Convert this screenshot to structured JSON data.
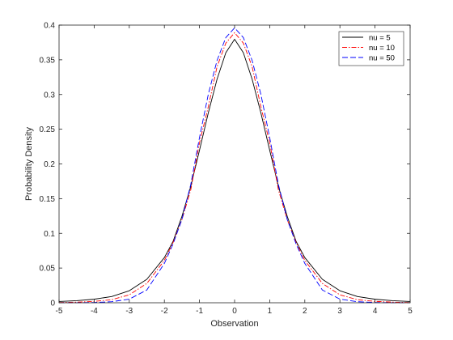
{
  "chart_data": {
    "type": "line",
    "title": "",
    "xlabel": "Observation",
    "ylabel": "Probability Density",
    "xlim": [
      -5,
      5
    ],
    "ylim": [
      0,
      0.4
    ],
    "xticks": [
      -5,
      -4,
      -3,
      -2,
      -1,
      0,
      1,
      2,
      3,
      4,
      5
    ],
    "yticks": [
      0,
      0.05,
      0.1,
      0.15,
      0.2,
      0.25,
      0.3,
      0.35,
      0.4
    ],
    "xtick_labels": [
      "-5",
      "-4",
      "-3",
      "-2",
      "-1",
      "0",
      "1",
      "2",
      "3",
      "4",
      "5"
    ],
    "ytick_labels": [
      "0",
      "0.05",
      "0.1",
      "0.15",
      "0.2",
      "0.25",
      "0.3",
      "0.35",
      "0.4"
    ],
    "grid": false,
    "legend_position": "top-right",
    "x": [
      -5,
      -4.5,
      -4,
      -3.5,
      -3,
      -2.5,
      -2,
      -1.75,
      -1.5,
      -1.25,
      -1,
      -0.75,
      -0.5,
      -0.25,
      0,
      0.25,
      0.5,
      0.75,
      1,
      1.25,
      1.5,
      1.75,
      2,
      2.5,
      3,
      3.5,
      4,
      4.5,
      5
    ],
    "series": [
      {
        "name": "nu = 5",
        "color": "#000000",
        "dash": "solid",
        "values": [
          0.0018,
          0.003,
          0.0051,
          0.009,
          0.0173,
          0.0338,
          0.0651,
          0.0887,
          0.1245,
          0.1674,
          0.2197,
          0.2733,
          0.322,
          0.3602,
          0.3796,
          0.3602,
          0.322,
          0.2733,
          0.2197,
          0.1674,
          0.1245,
          0.0887,
          0.0651,
          0.0338,
          0.0173,
          0.009,
          0.0051,
          0.003,
          0.0018
        ]
      },
      {
        "name": "nu = 10",
        "color": "#ff0000",
        "dash": "dash-dot",
        "values": [
          0.0004,
          0.0009,
          0.002,
          0.0044,
          0.0114,
          0.0278,
          0.0611,
          0.087,
          0.1198,
          0.1622,
          0.2304,
          0.2822,
          0.34,
          0.374,
          0.3891,
          0.374,
          0.34,
          0.2822,
          0.2304,
          0.1622,
          0.1198,
          0.087,
          0.0611,
          0.0278,
          0.0114,
          0.0044,
          0.002,
          0.0009,
          0.0004
        ]
      },
      {
        "name": "nu = 50",
        "color": "#0000ff",
        "dash": "dashed",
        "values": [
          3e-05,
          0.0001,
          0.0004,
          0.0015,
          0.0052,
          0.0184,
          0.0567,
          0.085,
          0.12,
          0.17,
          0.238,
          0.3,
          0.349,
          0.382,
          0.396,
          0.382,
          0.349,
          0.3,
          0.238,
          0.17,
          0.12,
          0.085,
          0.0567,
          0.0184,
          0.0052,
          0.0015,
          0.0004,
          0.0001,
          3e-05
        ]
      }
    ]
  }
}
